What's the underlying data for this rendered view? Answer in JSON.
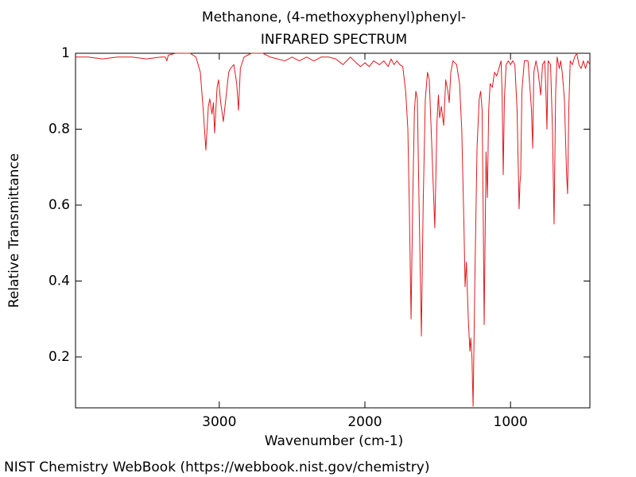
{
  "chart_data": {
    "type": "line",
    "title": "Methanone, (4-methoxyphenyl)phenyl-",
    "subtitle": "INFRARED SPECTRUM",
    "xlabel": "Wavenumber (cm-1)",
    "ylabel": "Relative Transmittance",
    "footer": "NIST Chemistry WebBook (https://webbook.nist.gov/chemistry)",
    "xlim": [
      3987,
      455
    ],
    "ylim": [
      0.066,
      1
    ],
    "xticks": [
      3000,
      2000,
      1000
    ],
    "yticks": [
      0.2,
      0.4,
      0.6,
      0.8,
      1
    ],
    "grid": false,
    "series": [
      {
        "color": "#e0191e",
        "x": [
          3987,
          3900,
          3800,
          3700,
          3600,
          3500,
          3400,
          3370,
          3360,
          3350,
          3300,
          3200,
          3160,
          3130,
          3110,
          3092,
          3075,
          3065,
          3050,
          3040,
          3032,
          3015,
          3005,
          2990,
          2972,
          2955,
          2935,
          2923,
          2900,
          2880,
          2868,
          2855,
          2830,
          2780,
          2700,
          2650,
          2600,
          2550,
          2500,
          2450,
          2400,
          2350,
          2300,
          2250,
          2200,
          2150,
          2100,
          2060,
          2030,
          2000,
          1970,
          1940,
          1900,
          1870,
          1840,
          1820,
          1800,
          1780,
          1760,
          1740,
          1720,
          1705,
          1695,
          1683,
          1672,
          1660,
          1650,
          1640,
          1628,
          1612,
          1600,
          1585,
          1570,
          1558,
          1540,
          1520,
          1505,
          1495,
          1487,
          1475,
          1459,
          1445,
          1430,
          1421,
          1410,
          1395,
          1370,
          1350,
          1335,
          1320,
          1312,
          1303,
          1290,
          1279,
          1273,
          1265,
          1257,
          1245,
          1230,
          1215,
          1205,
          1195,
          1188,
          1181,
          1172,
          1168,
          1159,
          1150,
          1140,
          1125,
          1110,
          1095,
          1080,
          1065,
          1058,
          1050,
          1042,
          1030,
          1015,
          1000,
          985,
          970,
          955,
          941,
          935,
          930,
          922,
          905,
          880,
          865,
          856,
          848,
          840,
          825,
          810,
          793,
          780,
          765,
          757,
          750,
          742,
          725,
          712,
          701,
          690,
          680,
          665,
          655,
          645,
          630,
          615,
          608,
          600,
          590,
          575,
          560,
          545,
          530,
          515,
          500,
          485,
          470,
          455
        ],
        "values": [
          0.99,
          0.99,
          0.985,
          0.99,
          0.99,
          0.985,
          0.99,
          0.99,
          0.98,
          0.995,
          1.0,
          1.0,
          0.99,
          0.95,
          0.85,
          0.745,
          0.86,
          0.88,
          0.84,
          0.87,
          0.79,
          0.91,
          0.93,
          0.87,
          0.82,
          0.88,
          0.95,
          0.96,
          0.97,
          0.92,
          0.85,
          0.96,
          0.99,
          1.0,
          1.0,
          0.99,
          0.985,
          0.98,
          0.99,
          0.98,
          0.99,
          0.98,
          0.99,
          0.99,
          0.985,
          0.97,
          0.99,
          0.975,
          0.965,
          0.975,
          0.965,
          0.98,
          0.97,
          0.98,
          0.965,
          0.985,
          0.97,
          0.98,
          0.97,
          0.965,
          0.9,
          0.8,
          0.6,
          0.3,
          0.6,
          0.85,
          0.9,
          0.88,
          0.6,
          0.255,
          0.6,
          0.88,
          0.95,
          0.93,
          0.75,
          0.54,
          0.82,
          0.89,
          0.83,
          0.86,
          0.81,
          0.93,
          0.9,
          0.87,
          0.95,
          0.98,
          0.97,
          0.92,
          0.8,
          0.55,
          0.385,
          0.45,
          0.3,
          0.215,
          0.25,
          0.2,
          0.07,
          0.4,
          0.75,
          0.88,
          0.9,
          0.85,
          0.6,
          0.285,
          0.6,
          0.74,
          0.62,
          0.85,
          0.92,
          0.91,
          0.95,
          0.94,
          0.96,
          0.98,
          0.9,
          0.68,
          0.88,
          0.97,
          0.98,
          0.97,
          0.98,
          0.97,
          0.85,
          0.59,
          0.66,
          0.68,
          0.9,
          0.98,
          0.98,
          0.9,
          0.85,
          0.75,
          0.95,
          0.98,
          0.95,
          0.89,
          0.97,
          0.98,
          0.9,
          0.8,
          0.98,
          0.97,
          0.8,
          0.55,
          0.9,
          0.99,
          0.96,
          0.98,
          0.95,
          0.88,
          0.68,
          0.63,
          0.85,
          0.98,
          0.97,
          0.99,
          1.0,
          0.97,
          0.96,
          0.98,
          0.96,
          0.98,
          0.97
        ]
      }
    ]
  }
}
